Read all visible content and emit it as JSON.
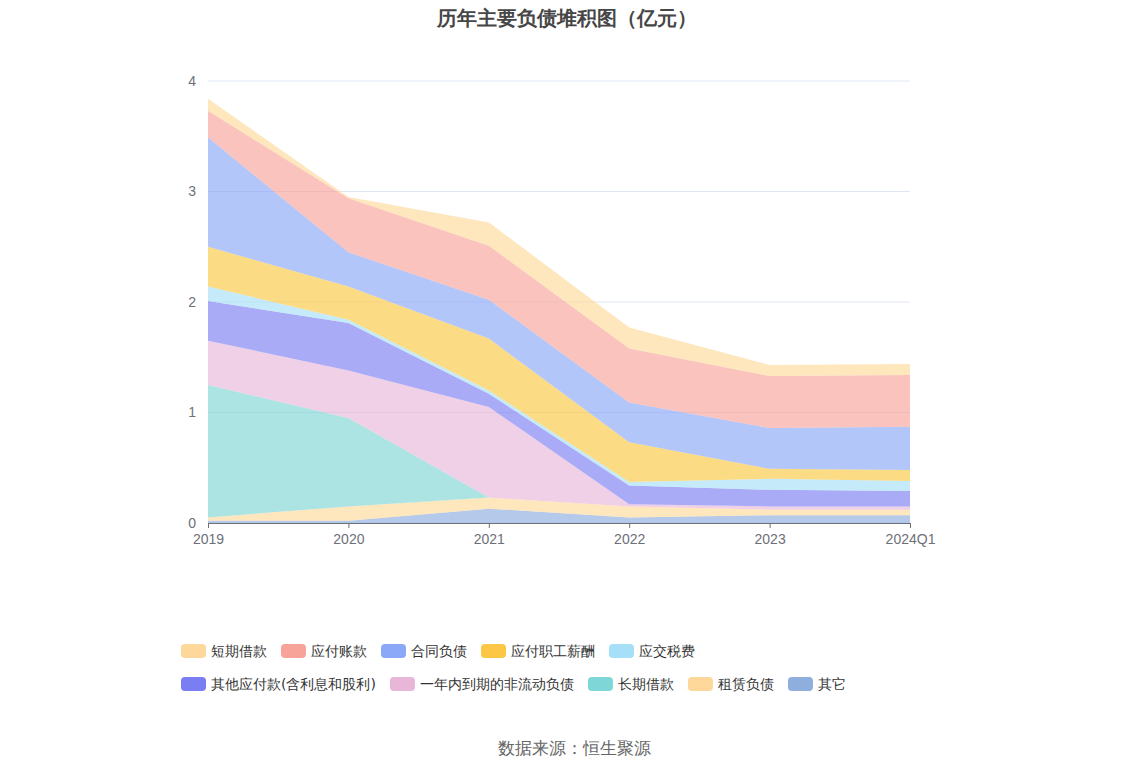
{
  "chart_data": {
    "type": "area",
    "title": "历年主要负债堆积图（亿元）",
    "source": "数据来源：恒生聚源",
    "stacked": true,
    "grid": true,
    "legend": "bottom",
    "categories": [
      "2019",
      "2020",
      "2021",
      "2022",
      "2023",
      "2024Q1"
    ],
    "ylim": [
      0,
      4
    ],
    "yticks": [
      0,
      1,
      2,
      3,
      4
    ],
    "series": [
      {
        "name": "短期借款",
        "color": "#fdd89a",
        "values": [
          0.11,
          0.01,
          0.21,
          0.19,
          0.1,
          0.1
        ]
      },
      {
        "name": "应付账款",
        "color": "#f8a39a",
        "values": [
          0.24,
          0.49,
          0.49,
          0.49,
          0.47,
          0.47
        ]
      },
      {
        "name": "合同负债",
        "color": "#8aa7f8",
        "values": [
          0.99,
          0.31,
          0.35,
          0.36,
          0.37,
          0.39
        ]
      },
      {
        "name": "应付职工薪酬",
        "color": "#fbc744",
        "values": [
          0.36,
          0.3,
          0.47,
          0.36,
          0.09,
          0.1
        ]
      },
      {
        "name": "应交税费",
        "color": "#a6e0f8",
        "values": [
          0.13,
          0.03,
          0.03,
          0.03,
          0.1,
          0.09
        ]
      },
      {
        "name": "其他应付款(含利息和股利)",
        "color": "#7b7ef2",
        "values": [
          0.36,
          0.43,
          0.12,
          0.17,
          0.15,
          0.14
        ]
      },
      {
        "name": "一年内到期的非流动负债",
        "color": "#e8b7d8",
        "values": [
          0.4,
          0.43,
          0.82,
          0.02,
          0.03,
          0.03
        ]
      },
      {
        "name": "长期借款",
        "color": "#7fd6d6",
        "values": [
          1.2,
          0.8,
          0,
          0,
          0,
          0
        ]
      },
      {
        "name": "租赁负债",
        "color": "#fdd89a",
        "values": [
          0.03,
          0.13,
          0.1,
          0.1,
          0.05,
          0.05
        ]
      },
      {
        "name": "其它",
        "color": "#8eaede",
        "values": [
          0.02,
          0.02,
          0.13,
          0.05,
          0.07,
          0.07
        ]
      }
    ]
  }
}
